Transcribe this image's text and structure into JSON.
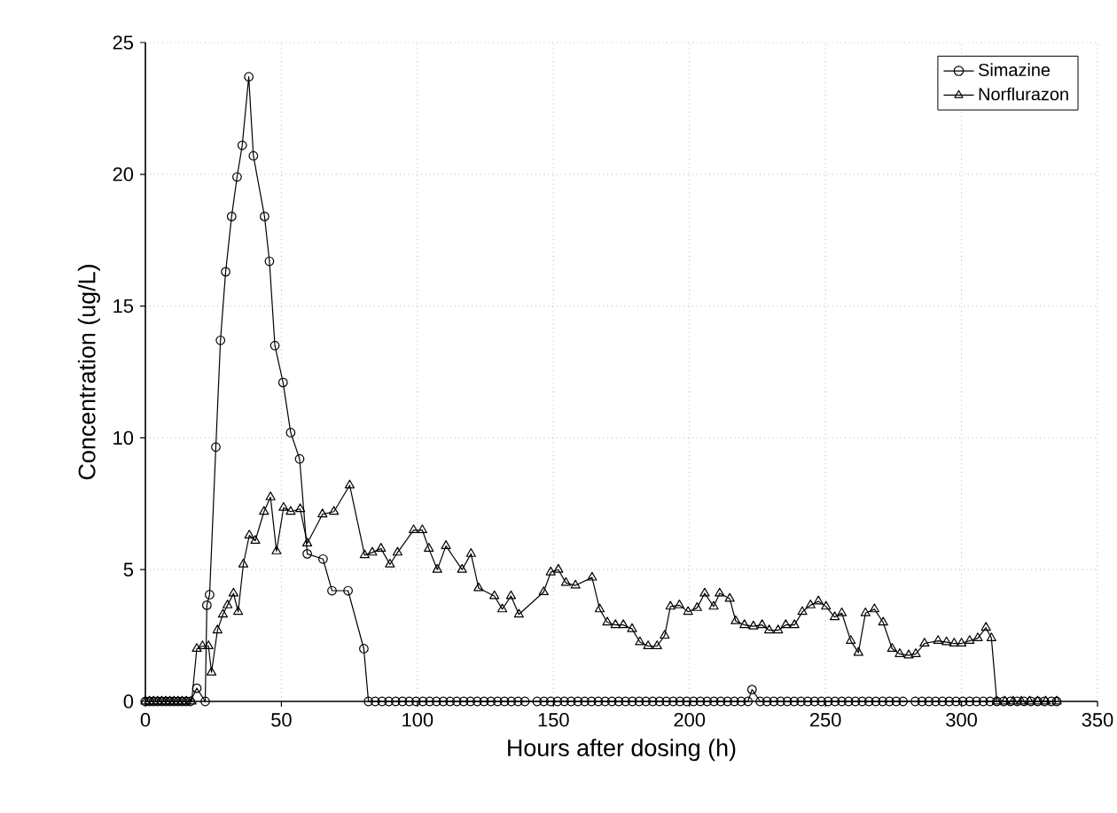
{
  "chart_data": {
    "type": "line",
    "xlabel": "Hours after dosing (h)",
    "ylabel": "Concentration (ug/L)",
    "xlim": [
      0,
      350
    ],
    "ylim": [
      0,
      25
    ],
    "xticks": [
      0,
      50,
      100,
      150,
      200,
      250,
      300,
      350
    ],
    "yticks": [
      0,
      5,
      10,
      15,
      20,
      25
    ],
    "grid": true,
    "legend": "top right",
    "line_style": "solid",
    "series": [
      {
        "name": "Simazine",
        "color": "#000000",
        "marker": "circle",
        "x": [
          0,
          1.5,
          3,
          4.5,
          6,
          7.5,
          9,
          10.5,
          12,
          13.5,
          15,
          16.5,
          18.9,
          22,
          22.6,
          23.6,
          25.9,
          27.6,
          29.5,
          31.7,
          33.7,
          35.6,
          38,
          39.7,
          43.8,
          45.6,
          47.6,
          50.6,
          53.4,
          56.7,
          59.5,
          65.3,
          68.6,
          74.5,
          80.3,
          82,
          84.5,
          87,
          89.5,
          92,
          94.5,
          97,
          99.5,
          102,
          104.5,
          107,
          109.5,
          112,
          114.5,
          117,
          119.5,
          122,
          124.5,
          127,
          129.5,
          132,
          134.5,
          137,
          139.5,
          144,
          146.5,
          149,
          151.5,
          154,
          156.5,
          159,
          161.5,
          164,
          166.5,
          169,
          171.5,
          174,
          176.5,
          179,
          181.5,
          184,
          186.5,
          189,
          191.5,
          194,
          196.5,
          199,
          201.5,
          204,
          206.5,
          209,
          211.5,
          214,
          216.5,
          219,
          221.5,
          223,
          226,
          228.5,
          231,
          233.5,
          236,
          238.5,
          241,
          243.5,
          246,
          248.5,
          251,
          253.5,
          256,
          258.5,
          261,
          263.5,
          266,
          268.5,
          271,
          273.5,
          276,
          278.5,
          283,
          285.5,
          288,
          290.5,
          293,
          295.5,
          298,
          300.5,
          303,
          305.5,
          308,
          310.5,
          313,
          315.5,
          318,
          320.5,
          323,
          325.5,
          328,
          330.5,
          333,
          335
        ],
        "values": [
          0,
          0,
          0,
          0,
          0,
          0,
          0,
          0,
          0,
          0,
          0,
          0,
          0.5,
          0,
          3.65,
          4.05,
          9.65,
          13.7,
          16.3,
          18.4,
          19.9,
          21.1,
          23.7,
          20.7,
          18.4,
          16.7,
          13.5,
          12.1,
          10.2,
          9.2,
          5.6,
          5.4,
          4.2,
          4.2,
          2.0,
          0,
          0,
          0,
          0,
          0,
          0,
          0,
          0,
          0,
          0,
          0,
          0,
          0,
          0,
          0,
          0,
          0,
          0,
          0,
          0,
          0,
          0,
          0,
          0,
          0,
          0,
          0,
          0,
          0,
          0,
          0,
          0,
          0,
          0,
          0,
          0,
          0,
          0,
          0,
          0,
          0,
          0,
          0,
          0,
          0,
          0,
          0,
          0,
          0,
          0,
          0,
          0,
          0,
          0,
          0,
          0,
          0.45,
          0,
          0,
          0,
          0,
          0,
          0,
          0,
          0,
          0,
          0,
          0,
          0,
          0,
          0,
          0,
          0,
          0,
          0,
          0,
          0,
          0,
          0,
          0,
          0,
          0,
          0,
          0,
          0,
          0,
          0,
          0,
          0,
          0,
          0,
          0,
          0,
          0,
          0,
          0,
          0,
          0,
          0,
          0,
          0
        ]
      },
      {
        "name": "Norflurazon",
        "color": "#000000",
        "marker": "triangle",
        "x": [
          0,
          1.5,
          3,
          4.5,
          6,
          7.5,
          9,
          10.5,
          12,
          13.5,
          15,
          17,
          18.9,
          21,
          23.2,
          24.3,
          26.5,
          28.5,
          30.2,
          32.4,
          34.1,
          36,
          38.2,
          40.4,
          43.6,
          46,
          48.2,
          50.8,
          53.4,
          56.9,
          59.5,
          65.1,
          69.3,
          75.1,
          80.6,
          83.4,
          86.6,
          89.9,
          92.7,
          98.6,
          101.8,
          104.2,
          107.3,
          110.5,
          116.4,
          119.7,
          122.5,
          128.3,
          131.2,
          134.4,
          137.3,
          146.4,
          149,
          151.8,
          154.6,
          158.1,
          164.2,
          167,
          169.8,
          172.8,
          175.7,
          178.9,
          181.8,
          184.8,
          188.1,
          190.9,
          193,
          196.3,
          199.5,
          202.8,
          205.6,
          208.9,
          211.1,
          214.8,
          217,
          220.2,
          223.5,
          226.7,
          229.3,
          232.6,
          235.4,
          238.6,
          241.5,
          244.5,
          247.4,
          250.2,
          253.4,
          256,
          259.3,
          262.1,
          264.7,
          268,
          271.2,
          274.5,
          277.3,
          280.6,
          283.2,
          286.4,
          291.4,
          294.5,
          297.3,
          300,
          303,
          306,
          309,
          311,
          313,
          316,
          319,
          322,
          325,
          328,
          331,
          335
        ],
        "values": [
          0,
          0,
          0,
          0,
          0,
          0,
          0,
          0,
          0,
          0,
          0,
          0,
          2.0,
          2.1,
          2.1,
          1.1,
          2.7,
          3.3,
          3.65,
          4.1,
          3.4,
          5.2,
          6.3,
          6.1,
          7.2,
          7.75,
          5.7,
          7.35,
          7.2,
          7.3,
          6.0,
          7.1,
          7.2,
          8.2,
          5.55,
          5.65,
          5.8,
          5.2,
          5.65,
          6.5,
          6.5,
          5.8,
          5.0,
          5.9,
          5.0,
          5.6,
          4.3,
          4.0,
          3.5,
          4.0,
          3.3,
          4.15,
          4.9,
          5.0,
          4.5,
          4.4,
          4.7,
          3.5,
          3.0,
          2.9,
          2.9,
          2.75,
          2.25,
          2.1,
          2.1,
          2.5,
          3.6,
          3.65,
          3.4,
          3.55,
          4.1,
          3.6,
          4.1,
          3.9,
          3.05,
          2.9,
          2.85,
          2.9,
          2.7,
          2.7,
          2.9,
          2.9,
          3.4,
          3.65,
          3.8,
          3.6,
          3.2,
          3.35,
          2.3,
          1.85,
          3.35,
          3.5,
          3.0,
          2.0,
          1.8,
          1.75,
          1.8,
          2.2,
          2.3,
          2.25,
          2.2,
          2.2,
          2.3,
          2.4,
          2.8,
          2.4,
          0,
          0,
          0,
          0,
          0,
          0,
          0,
          0
        ]
      }
    ]
  }
}
